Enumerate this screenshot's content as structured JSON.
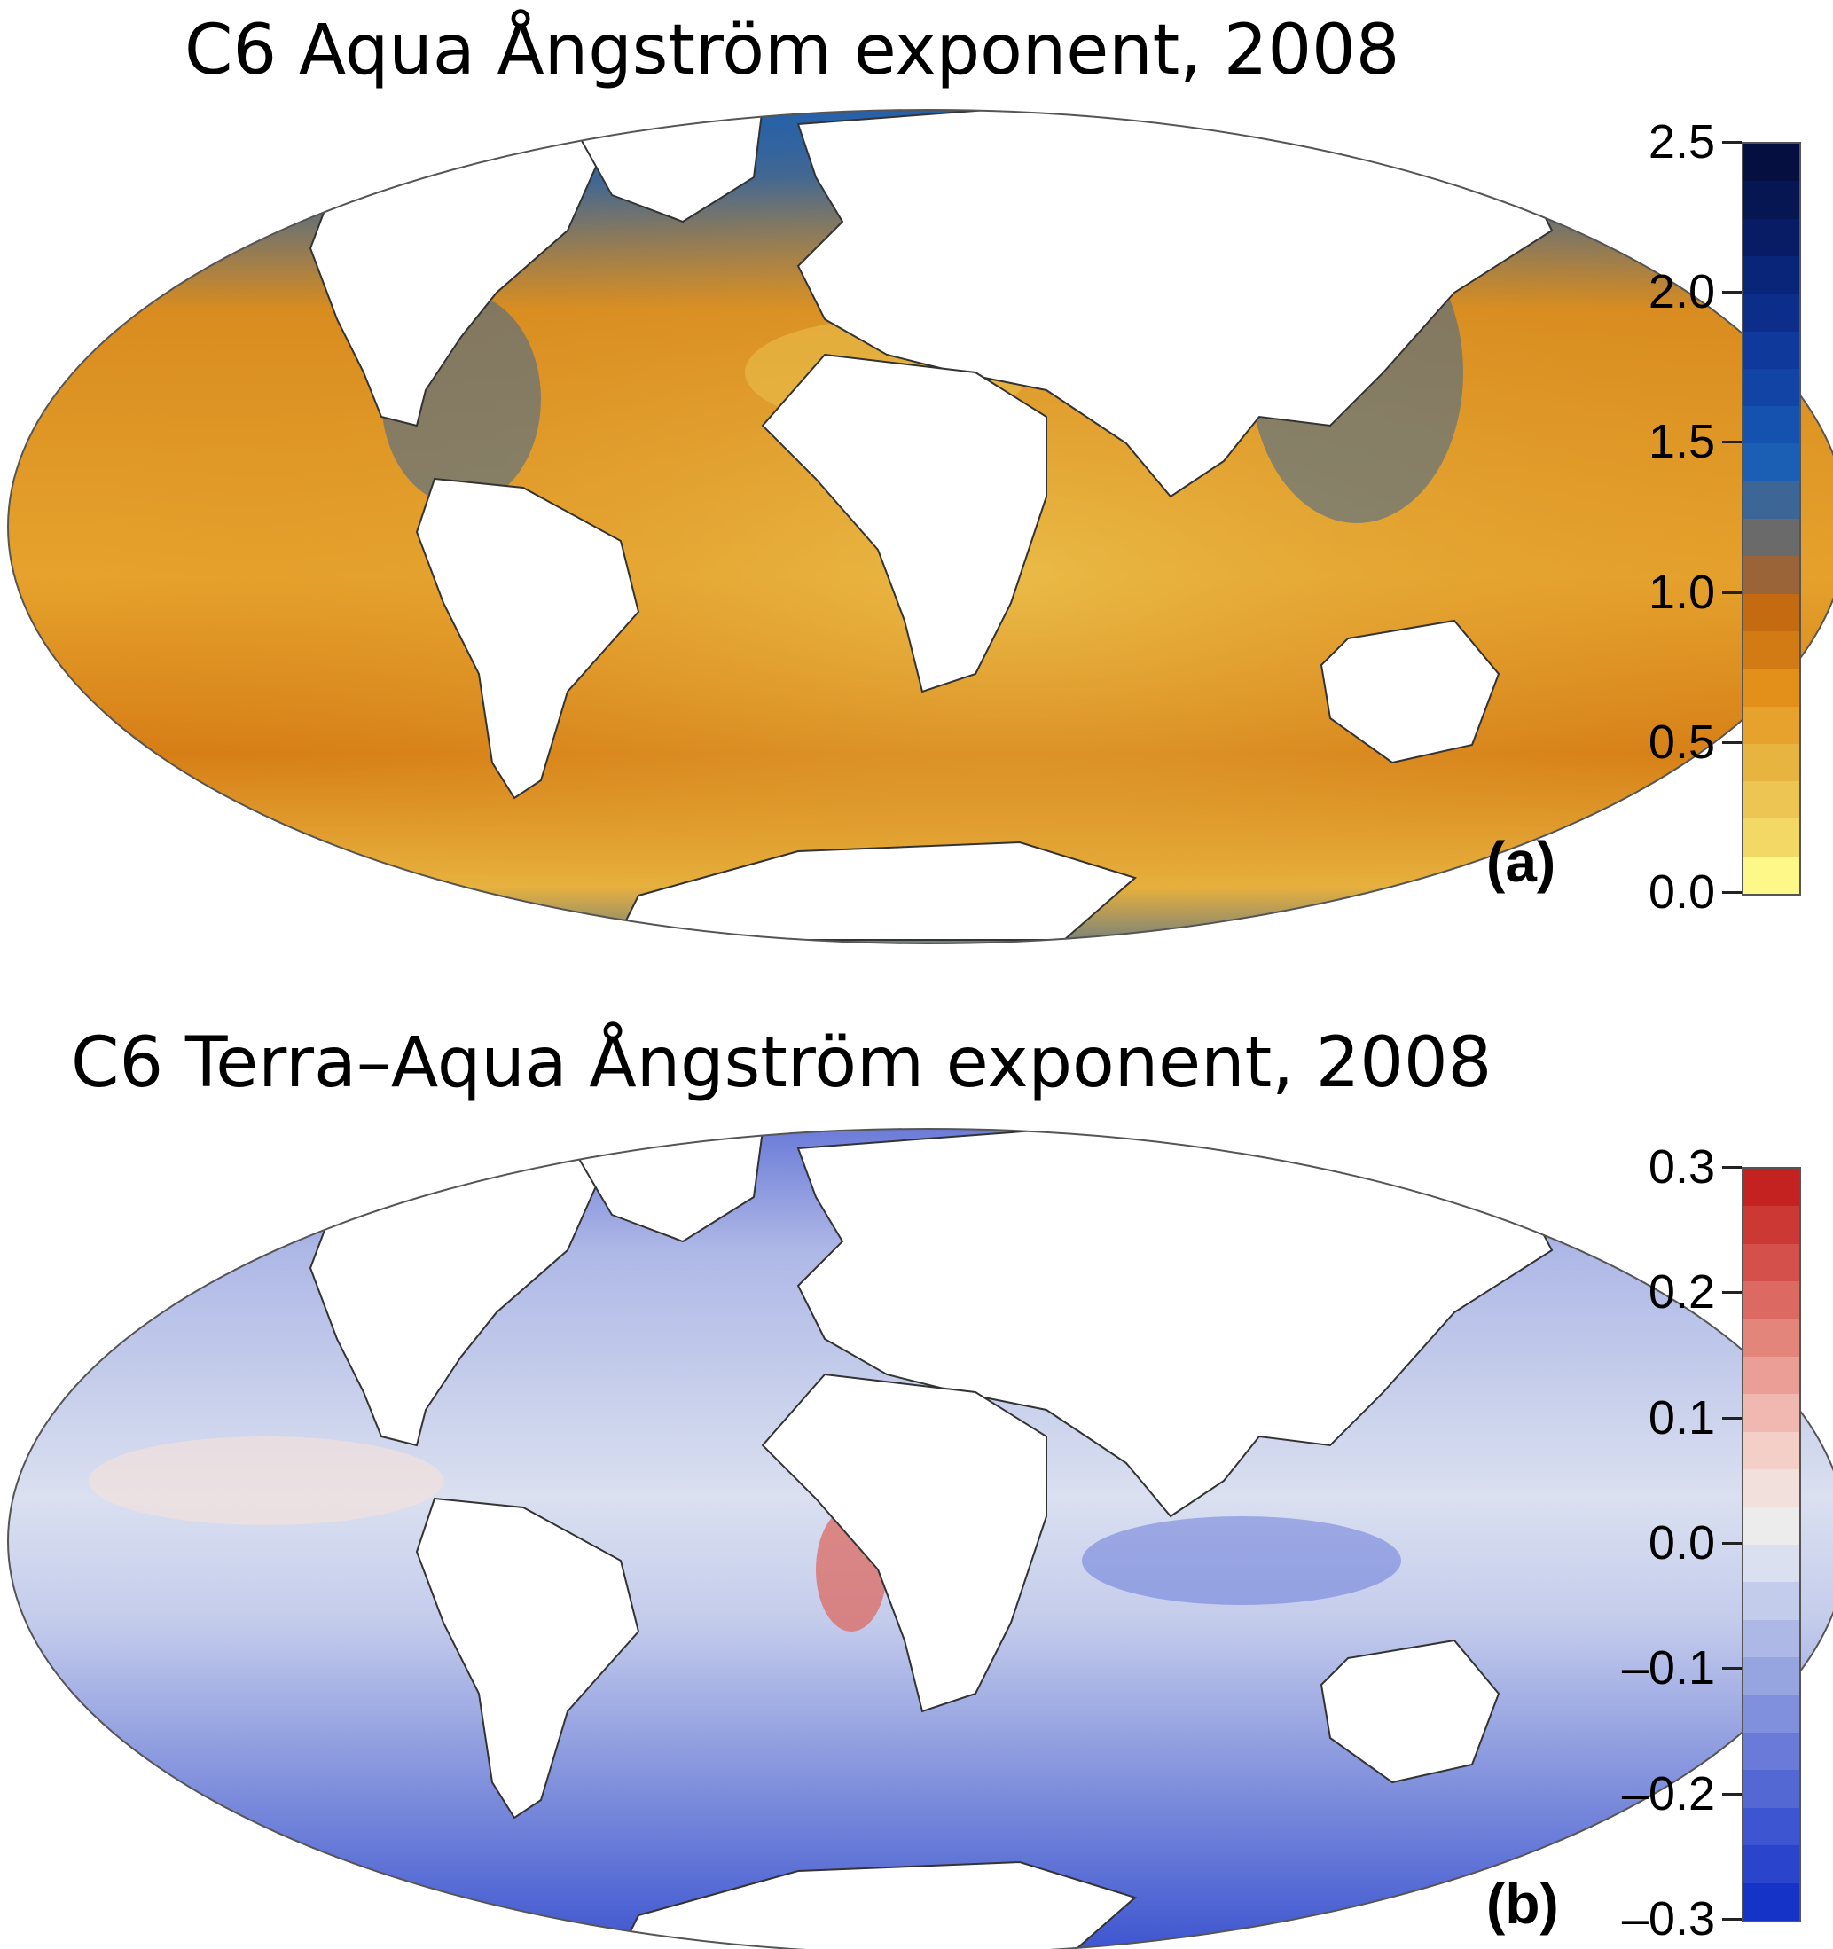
{
  "panel_a": {
    "title": "C6 Aqua Ångström exponent, 2008",
    "label": "(a)",
    "colorbar": {
      "ticks": [
        "2.5",
        "2.0",
        "1.5",
        "1.0",
        "0.5",
        "0.0"
      ],
      "range": [
        0.0,
        2.5
      ],
      "colors": [
        "#fef888",
        "#f4d866",
        "#ecc552",
        "#e8b440",
        "#e6a22c",
        "#e2901a",
        "#d27a14",
        "#c46a10",
        "#9a6438",
        "#6a6a6a",
        "#3c6696",
        "#1b5fb5",
        "#1552b0",
        "#1244a6",
        "#0f399a",
        "#0c2e8a",
        "#09257a",
        "#081c66",
        "#061652",
        "#051040"
      ]
    },
    "ocean_base_color": "#d98c1f",
    "land_color": "#ffffff",
    "coast_color": "#333333"
  },
  "panel_b": {
    "title": "C6 Terra–Aqua Ångström exponent, 2008",
    "label": "(b)",
    "colorbar": {
      "ticks": [
        "0.3",
        "0.2",
        "0.1",
        "0.0",
        "–0.1",
        "–0.2",
        "–0.3"
      ],
      "range": [
        -0.3,
        0.3
      ],
      "colors": [
        "#1633c8",
        "#2a44cc",
        "#3d55d0",
        "#5468d4",
        "#6a7ad8",
        "#8090dc",
        "#96a4e0",
        "#aeb8e6",
        "#c4ccec",
        "#dae0f0",
        "#ececec",
        "#f2e0dc",
        "#f4cfc8",
        "#f0b8b0",
        "#ea9e96",
        "#e4857c",
        "#dc6a62",
        "#d4504a",
        "#cc3834",
        "#c42220"
      ]
    },
    "ocean_base_color": "#c8cef0",
    "land_color": "#ffffff",
    "coast_color": "#333333"
  }
}
